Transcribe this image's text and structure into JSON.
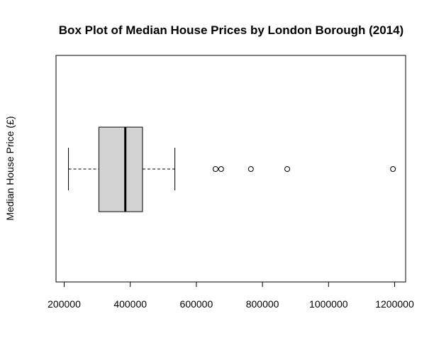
{
  "chart_data": {
    "type": "box",
    "orientation": "horizontal",
    "title": "Box Plot of Median House Prices by London Borough (2014)",
    "xlabel": "",
    "ylabel": "Median House Price (£)",
    "xlim": [
      180000,
      1230000
    ],
    "ticks": [
      200000,
      400000,
      600000,
      800000,
      1000000,
      1200000
    ],
    "tick_labels": [
      "200000",
      "400000",
      "600000",
      "800000",
      "1000000",
      "1200000"
    ],
    "box": {
      "whisker_low": 213000,
      "q1": 305000,
      "median": 385000,
      "q3": 437000,
      "whisker_high": 535000
    },
    "outliers": [
      658000,
      675000,
      765000,
      875000,
      1195000
    ],
    "box_fill": "#d3d3d3",
    "grid": false
  }
}
